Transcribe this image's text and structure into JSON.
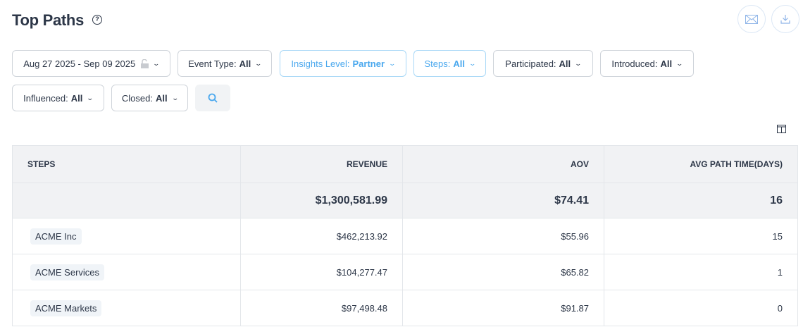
{
  "header": {
    "title": "Top Paths",
    "help": "?"
  },
  "filters": [
    {
      "label": "Aug 27 2025 - Sep 09 2025",
      "value": "",
      "active": false,
      "locked": true
    },
    {
      "label": "Event Type:",
      "value": "All",
      "active": false
    },
    {
      "label": "Insights Level:",
      "value": "Partner",
      "active": true
    },
    {
      "label": "Steps:",
      "value": "All",
      "active": true
    },
    {
      "label": "Participated:",
      "value": "All",
      "active": false
    },
    {
      "label": "Introduced:",
      "value": "All",
      "active": false
    },
    {
      "label": "Influenced:",
      "value": "All",
      "active": false
    },
    {
      "label": "Closed:",
      "value": "All",
      "active": false
    }
  ],
  "colors": {
    "accent": "#4aa8ee",
    "text": "#2d3748",
    "header_bg": "#f1f2f4"
  },
  "table": {
    "columns": [
      "STEPS",
      "REVENUE",
      "AOV",
      "AVG PATH TIME(DAYS)"
    ],
    "totals": [
      "",
      "$1,300,581.99",
      "$74.41",
      "16"
    ],
    "rows": [
      [
        "ACME Inc",
        "$462,213.92",
        "$55.96",
        "15"
      ],
      [
        "ACME Services",
        "$104,277.47",
        "$65.82",
        "1"
      ],
      [
        "ACME Markets",
        "$97,498.48",
        "$91.87",
        "0"
      ]
    ]
  }
}
